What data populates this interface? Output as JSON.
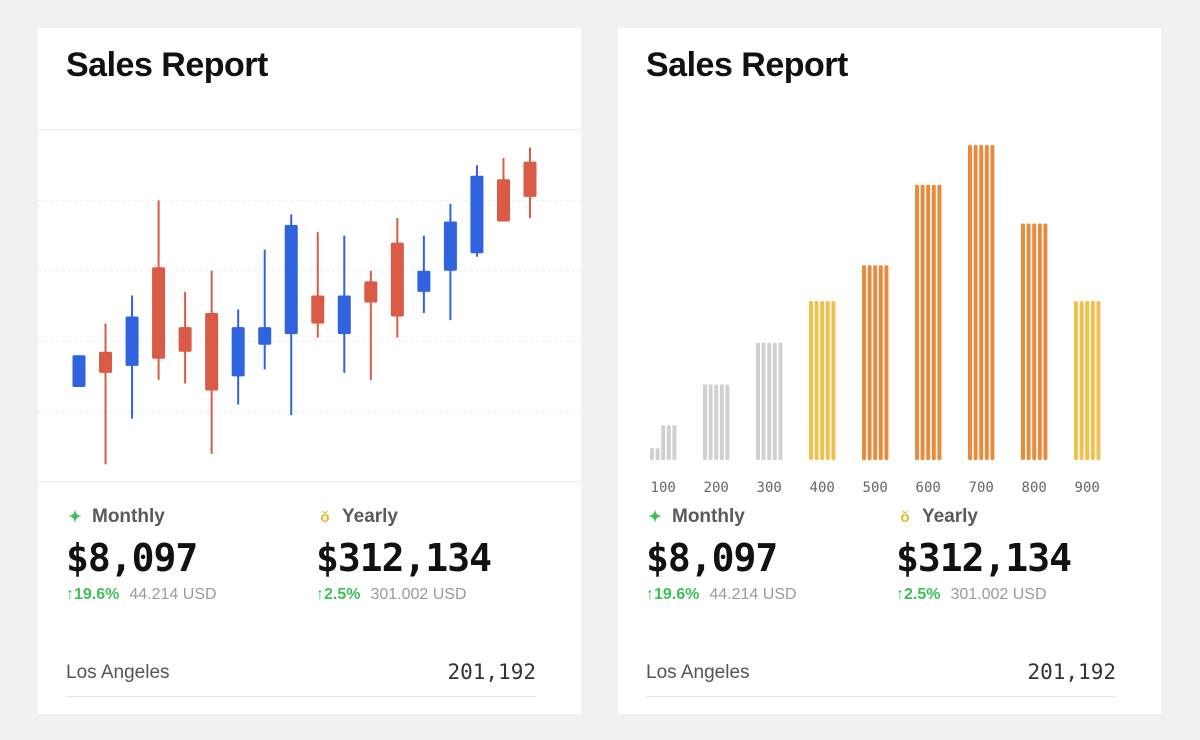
{
  "colors": {
    "up": "#2f63e0",
    "down": "#d95a45",
    "gray": "#cfd0d4",
    "yellow": "#f0c24d",
    "orange": "#e98a3c",
    "positive": "#3dbf58"
  },
  "cards": [
    {
      "title": "Sales Report",
      "monthly": {
        "icon": "sparkle-icon",
        "label": "Monthly",
        "value": "$8,097",
        "change": "↑19.6%",
        "sub": "44.214 USD"
      },
      "yearly": {
        "icon": "medal-icon",
        "label": "Yearly",
        "value": "$312,134",
        "change": "↑2.5%",
        "sub": "301.002 USD"
      },
      "footer": {
        "city": "Los Angeles",
        "value": "201,192"
      }
    },
    {
      "title": "Sales Report",
      "monthly": {
        "icon": "sparkle-icon",
        "label": "Monthly",
        "value": "$8,097",
        "change": "↑19.6%",
        "sub": "44.214 USD"
      },
      "yearly": {
        "icon": "medal-icon",
        "label": "Yearly",
        "value": "$312,134",
        "change": "↑2.5%",
        "sub": "301.002 USD"
      },
      "footer": {
        "city": "Los Angeles",
        "value": "201,192"
      }
    }
  ],
  "chart_data": [
    {
      "type": "candlestick",
      "grid": true,
      "ylim": [
        0,
        100
      ],
      "candles": [
        {
          "open": 36,
          "close": 27,
          "high": 36,
          "low": 27,
          "dir": "up"
        },
        {
          "open": 37,
          "close": 31,
          "high": 45,
          "low": 5,
          "dir": "down"
        },
        {
          "open": 47,
          "close": 33,
          "high": 53,
          "low": 18,
          "dir": "up"
        },
        {
          "open": 61,
          "close": 35,
          "high": 80,
          "low": 29,
          "dir": "down"
        },
        {
          "open": 44,
          "close": 37,
          "high": 54,
          "low": 28,
          "dir": "down"
        },
        {
          "open": 48,
          "close": 26,
          "high": 60,
          "low": 8,
          "dir": "down"
        },
        {
          "open": 44,
          "close": 30,
          "high": 49,
          "low": 22,
          "dir": "up"
        },
        {
          "open": 44,
          "close": 39,
          "high": 66,
          "low": 32,
          "dir": "up"
        },
        {
          "open": 73,
          "close": 42,
          "high": 76,
          "low": 19,
          "dir": "up"
        },
        {
          "open": 53,
          "close": 45,
          "high": 71,
          "low": 41,
          "dir": "down"
        },
        {
          "open": 53,
          "close": 42,
          "high": 70,
          "low": 31,
          "dir": "up"
        },
        {
          "open": 57,
          "close": 51,
          "high": 60,
          "low": 29,
          "dir": "down"
        },
        {
          "open": 68,
          "close": 47,
          "high": 75,
          "low": 41,
          "dir": "down"
        },
        {
          "open": 60,
          "close": 54,
          "high": 70,
          "low": 48,
          "dir": "up"
        },
        {
          "open": 74,
          "close": 60,
          "high": 79,
          "low": 46,
          "dir": "up"
        },
        {
          "open": 87,
          "close": 65,
          "high": 90,
          "low": 64,
          "dir": "up"
        },
        {
          "open": 86,
          "close": 74,
          "high": 92,
          "low": 74,
          "dir": "down"
        },
        {
          "open": 91,
          "close": 81,
          "high": 95,
          "low": 75,
          "dir": "down"
        }
      ]
    },
    {
      "type": "bar",
      "categories": [
        "100",
        "200",
        "300",
        "400",
        "500",
        "600",
        "700",
        "800",
        "900"
      ],
      "ylim": [
        0,
        320
      ],
      "groups": [
        {
          "category": "100",
          "color": "gray",
          "values": [
            12,
            12,
            35,
            35,
            35
          ]
        },
        {
          "category": "200",
          "color": "gray",
          "values": [
            76,
            76,
            76,
            76,
            76
          ]
        },
        {
          "category": "300",
          "color": "gray",
          "values": [
            118,
            118,
            118,
            118,
            118
          ]
        },
        {
          "category": "400",
          "color": "yellow",
          "values": [
            160,
            160,
            160,
            160,
            160
          ]
        },
        {
          "category": "500",
          "color": "orange",
          "values": [
            196,
            196,
            196,
            196,
            196
          ]
        },
        {
          "category": "600",
          "color": "orange",
          "values": [
            277,
            277,
            277,
            277,
            277
          ]
        },
        {
          "category": "700",
          "color": "orange",
          "values": [
            317,
            317,
            317,
            317,
            317
          ]
        },
        {
          "category": "800",
          "color": "orange",
          "values": [
            238,
            238,
            238,
            238,
            238
          ]
        },
        {
          "category": "900",
          "color": "yellow",
          "values": [
            160,
            160,
            160,
            160,
            160
          ]
        }
      ]
    }
  ]
}
